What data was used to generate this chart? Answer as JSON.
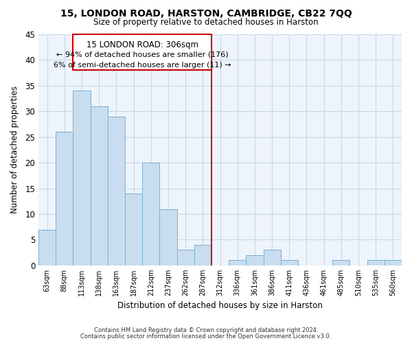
{
  "title": "15, LONDON ROAD, HARSTON, CAMBRIDGE, CB22 7QQ",
  "subtitle": "Size of property relative to detached houses in Harston",
  "xlabel": "Distribution of detached houses by size in Harston",
  "ylabel": "Number of detached properties",
  "bar_color": "#c8ddef",
  "bar_edge_color": "#7ab0d4",
  "bin_labels": [
    "63sqm",
    "88sqm",
    "113sqm",
    "138sqm",
    "163sqm",
    "187sqm",
    "212sqm",
    "237sqm",
    "262sqm",
    "287sqm",
    "312sqm",
    "336sqm",
    "361sqm",
    "386sqm",
    "411sqm",
    "436sqm",
    "461sqm",
    "485sqm",
    "510sqm",
    "535sqm",
    "560sqm"
  ],
  "bin_values": [
    7,
    26,
    34,
    31,
    29,
    14,
    20,
    11,
    3,
    4,
    0,
    1,
    2,
    3,
    1,
    0,
    0,
    1,
    0,
    1,
    1
  ],
  "vline_bin": 10,
  "vline_color": "#cc0000",
  "ylim": [
    0,
    45
  ],
  "yticks": [
    0,
    5,
    10,
    15,
    20,
    25,
    30,
    35,
    40,
    45
  ],
  "annotation_title": "15 LONDON ROAD: 306sqm",
  "annotation_line1": "← 94% of detached houses are smaller (176)",
  "annotation_line2": "6% of semi-detached houses are larger (11) →",
  "footnote1": "Contains HM Land Registry data © Crown copyright and database right 2024.",
  "footnote2": "Contains public sector information licensed under the Open Government Licence v3.0.",
  "background_color": "#eef4fb",
  "grid_color": "#c8d8e8"
}
